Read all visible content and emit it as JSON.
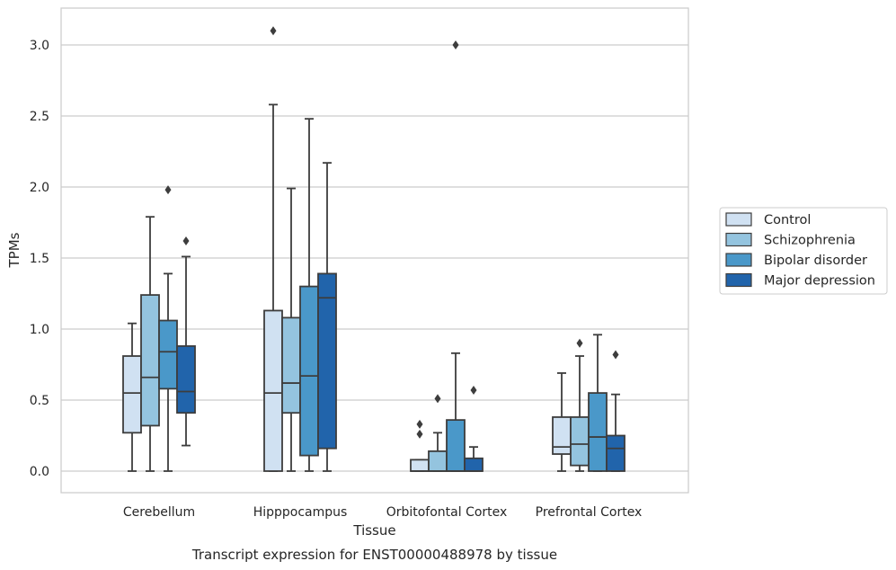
{
  "chart_data": {
    "type": "box",
    "title": "Transcript expression for ENST00000488978 by tissue",
    "xlabel": "Tissue",
    "ylabel": "TPMs",
    "ylim": [
      -0.15,
      3.25
    ],
    "yticks": [
      "0.0",
      "0.5",
      "1.0",
      "1.5",
      "2.0",
      "2.5",
      "3.0"
    ],
    "grid": true,
    "legend_position": "right",
    "categories": [
      "Cerebellum",
      "Hipppocampus",
      "Orbitofontal Cortex",
      "Prefrontal Cortex"
    ],
    "series": [
      {
        "name": "Control",
        "color": "#d0e1f2",
        "boxes": [
          {
            "whislo": 0.0,
            "q1": 0.27,
            "med": 0.55,
            "q3": 0.81,
            "whishi": 1.04,
            "fliers": []
          },
          {
            "whislo": 0.0,
            "q1": 0.0,
            "med": 0.55,
            "q3": 1.13,
            "whishi": 2.58,
            "fliers": [
              3.1
            ]
          },
          {
            "whislo": 0.0,
            "q1": 0.0,
            "med": 0.0,
            "q3": 0.08,
            "whishi": 0.08,
            "fliers": [
              0.26,
              0.33
            ]
          },
          {
            "whislo": 0.0,
            "q1": 0.12,
            "med": 0.17,
            "q3": 0.38,
            "whishi": 0.69,
            "fliers": []
          }
        ]
      },
      {
        "name": "Schizophrenia",
        "color": "#94c4df",
        "boxes": [
          {
            "whislo": 0.0,
            "q1": 0.32,
            "med": 0.66,
            "q3": 1.24,
            "whishi": 1.79,
            "fliers": []
          },
          {
            "whislo": 0.0,
            "q1": 0.41,
            "med": 0.62,
            "q3": 1.08,
            "whishi": 1.99,
            "fliers": []
          },
          {
            "whislo": 0.0,
            "q1": 0.0,
            "med": 0.0,
            "q3": 0.14,
            "whishi": 0.27,
            "fliers": [
              0.51
            ]
          },
          {
            "whislo": 0.0,
            "q1": 0.04,
            "med": 0.19,
            "q3": 0.38,
            "whishi": 0.81,
            "fliers": [
              0.9
            ]
          }
        ]
      },
      {
        "name": "Bipolar disorder",
        "color": "#4a98c9",
        "boxes": [
          {
            "whislo": 0.0,
            "q1": 0.58,
            "med": 0.84,
            "q3": 1.06,
            "whishi": 1.39,
            "fliers": [
              1.98
            ]
          },
          {
            "whislo": 0.0,
            "q1": 0.11,
            "med": 0.67,
            "q3": 1.3,
            "whishi": 2.48,
            "fliers": []
          },
          {
            "whislo": 0.0,
            "q1": 0.0,
            "med": 0.0,
            "q3": 0.36,
            "whishi": 0.83,
            "fliers": [
              3.0
            ]
          },
          {
            "whislo": 0.0,
            "q1": 0.0,
            "med": 0.24,
            "q3": 0.55,
            "whishi": 0.96,
            "fliers": []
          }
        ]
      },
      {
        "name": "Major depression",
        "color": "#2164ab",
        "boxes": [
          {
            "whislo": 0.18,
            "q1": 0.41,
            "med": 0.56,
            "q3": 0.88,
            "whishi": 1.51,
            "fliers": [
              1.62
            ]
          },
          {
            "whislo": 0.0,
            "q1": 0.16,
            "med": 1.22,
            "q3": 1.39,
            "whishi": 2.17,
            "fliers": []
          },
          {
            "whislo": 0.0,
            "q1": 0.0,
            "med": 0.0,
            "q3": 0.09,
            "whishi": 0.17,
            "fliers": [
              0.57
            ]
          },
          {
            "whislo": 0.0,
            "q1": 0.0,
            "med": 0.16,
            "q3": 0.25,
            "whishi": 0.54,
            "fliers": [
              0.82
            ]
          }
        ]
      }
    ]
  }
}
